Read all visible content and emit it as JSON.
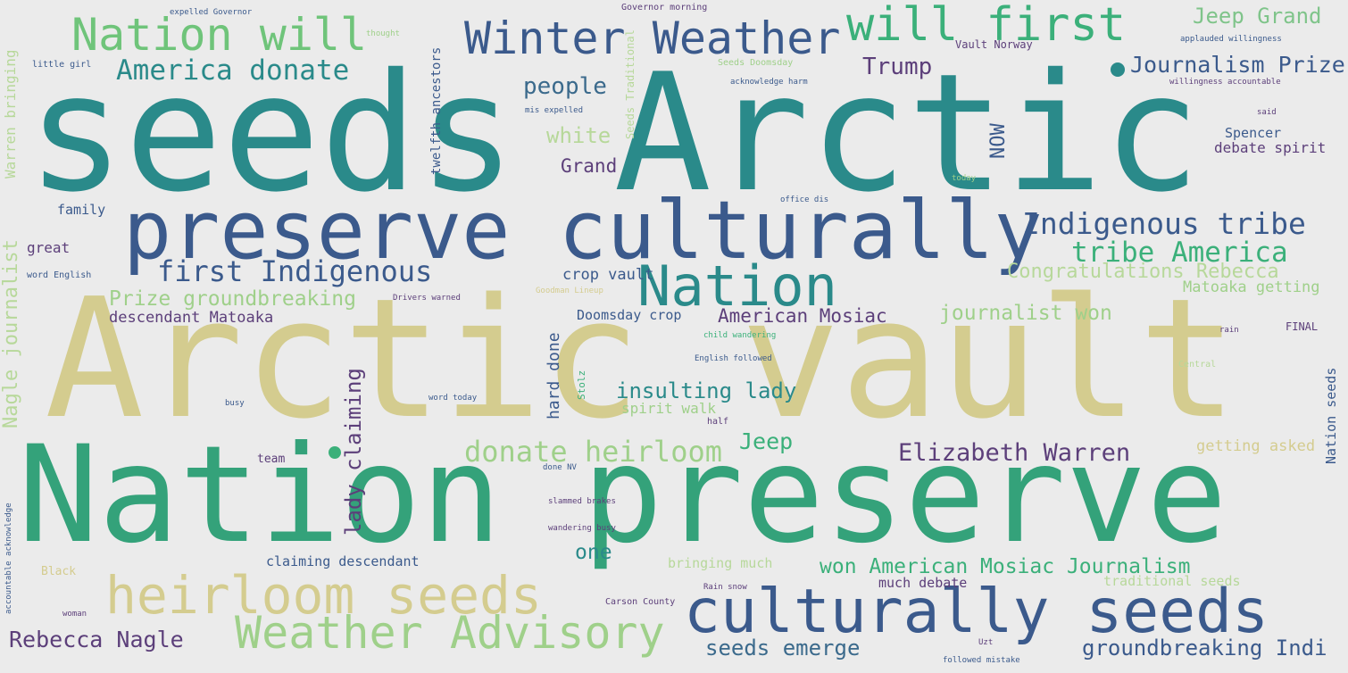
{
  "palette": {
    "background": "#ebebeb",
    "teal": "#2a8a8a",
    "green": "#3bb07a",
    "khaki": "#d4cc8f",
    "navy": "#3b5a8c",
    "purple": "#5c3f7a",
    "lightgreen": "#9fd08a",
    "grey": "#b8b8b8"
  },
  "words": [
    "seeds Arctic",
    "Arctic vault",
    "Nation preserve",
    "preserve culturally",
    "culturally seeds",
    "heirloom seeds",
    "Weather Advisory",
    "Nation",
    "Nation will",
    "Winter Weather",
    "will first",
    "America donate",
    "Trump",
    "Jeep Grand",
    "Journalism Prize",
    "people",
    "white",
    "Grand",
    "Indigenous tribe",
    "tribe America",
    "first Indigenous",
    "Congratulations Rebecca",
    "Matoaka getting",
    "Prize groundbreaking",
    "descendant Matoaka",
    "American Mosiac",
    "journalist won",
    "Doomsday crop",
    "insulting lady",
    "spirit walk",
    "donate heirloom",
    "Jeep",
    "Elizabeth Warren",
    "getting asked",
    "won American Mosiac Journalism",
    "much debate",
    "traditional seeds",
    "claiming descendant",
    "bringing much",
    "one",
    "Rebecca Nagle",
    "seeds emerge",
    "groundbreaking Indi",
    "crop vault",
    "family",
    "great",
    "little girl",
    "word English",
    "Spencer",
    "debate spirit",
    "Nagle journalist",
    "Warren bringing",
    "lady claiming",
    "hard done",
    "Nation seeds",
    "twelfth ancestors",
    "Seeds Traditional",
    "NOW",
    "Stolz",
    "Black",
    "team",
    "Vault Norway",
    "FINAL",
    "applauded willingness",
    "willingness accountable",
    "expelled Governor",
    "Governor morning",
    "thought",
    "acknowledge harm",
    "mis expelled",
    "office dis",
    "Drivers warned",
    "Goodman Lineup",
    "Seeds Doomsday",
    "child wandering",
    "English followed",
    "wandering busy",
    "slammed brakes",
    "Rain snow",
    "Carson County",
    "word today",
    "accountable acknowledge",
    "followed mistake",
    "done NV",
    "Central",
    "half",
    "today",
    "woman",
    "said",
    "busy",
    "rain",
    "Uzt"
  ]
}
